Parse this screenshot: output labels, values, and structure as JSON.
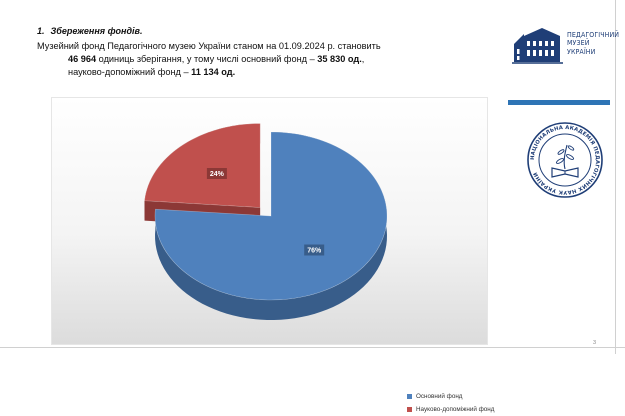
{
  "heading": {
    "number": "1.",
    "title": "Збереження фондів."
  },
  "body": {
    "line1": "Музейний фонд Педагогічного музею України станом на 01.09.2024 р. становить",
    "line2_num": "46 964",
    "line2_mid": " одиниць зберігання, у тому числі основний фонд – ",
    "line2_val": "35 830 од.",
    "line2_end": ",",
    "line3_pre": "науково-допоміжний фонд – ",
    "line3_val": "11 134 од."
  },
  "logo": {
    "line1": "ПЕДАГОГІЧНИЙ",
    "line2": "МУЗЕЙ",
    "line3": "УКРАЇНИ"
  },
  "seal": {
    "ring_text": "НАЦІОНАЛЬНА АКАДЕМІЯ ПЕДАГОГІЧНИХ НАУК УКРАЇНИ"
  },
  "colors": {
    "main": "#4f81bd",
    "main_side": "#385d8a",
    "aux": "#c0504d",
    "aux_side": "#8c3836",
    "accent": "#2e74b5",
    "logo": "#1f3e77"
  },
  "chart_data": {
    "type": "pie",
    "style": "3d-exploded",
    "title": "",
    "series": [
      {
        "name": "Основний фонд",
        "value": 35830,
        "label": "76%",
        "color": "#4f81bd"
      },
      {
        "name": "Науково-допоміжний фонд",
        "value": 11134,
        "label": "24%",
        "color": "#c0504d"
      }
    ],
    "legend_position": "bottom-right"
  },
  "page_number": "3"
}
